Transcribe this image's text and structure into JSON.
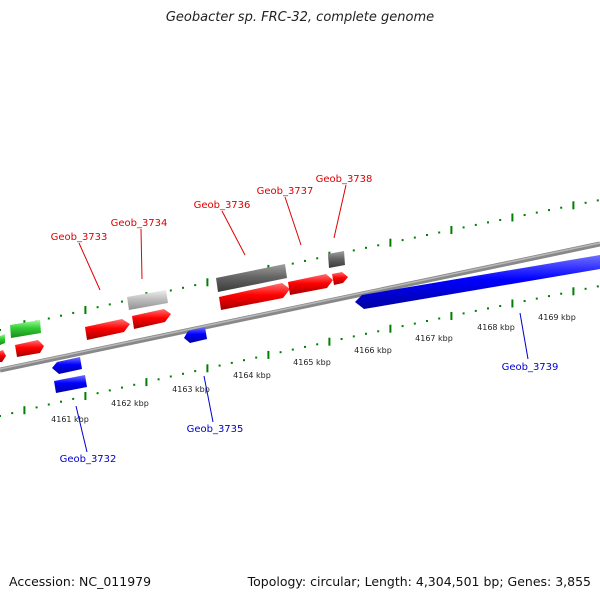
{
  "title": "Geobacter sp. FRC-32, complete genome",
  "footer": {
    "accession": "Accession: NC_011979",
    "summary": "Topology: circular; Length: 4,304,501 bp; Genes: 3,855"
  },
  "colors": {
    "plus_strand_gene": "#ff0000",
    "minus_strand_gene": "#0000ff",
    "rna_gene": "#33cc33",
    "pseudo_dark": "#666666",
    "pseudo_light": "#c0c0c0",
    "tick": "#008000",
    "backbone": "#888888"
  },
  "kbp_labels": [
    "4161 kbp",
    "4162 kbp",
    "4163 kbp",
    "4164 kbp",
    "4165 kbp",
    "4166 kbp",
    "4167 kbp",
    "4168 kbp",
    "4169 kbp"
  ],
  "gene_labels": {
    "geob_3733": "Geob_3733",
    "geob_3734": "Geob_3734",
    "geob_3736": "Geob_3736",
    "geob_3737": "Geob_3737",
    "geob_3738": "Geob_3738",
    "geob_3732": "Geob_3732",
    "geob_3735": "Geob_3735",
    "geob_3739": "Geob_3739"
  }
}
